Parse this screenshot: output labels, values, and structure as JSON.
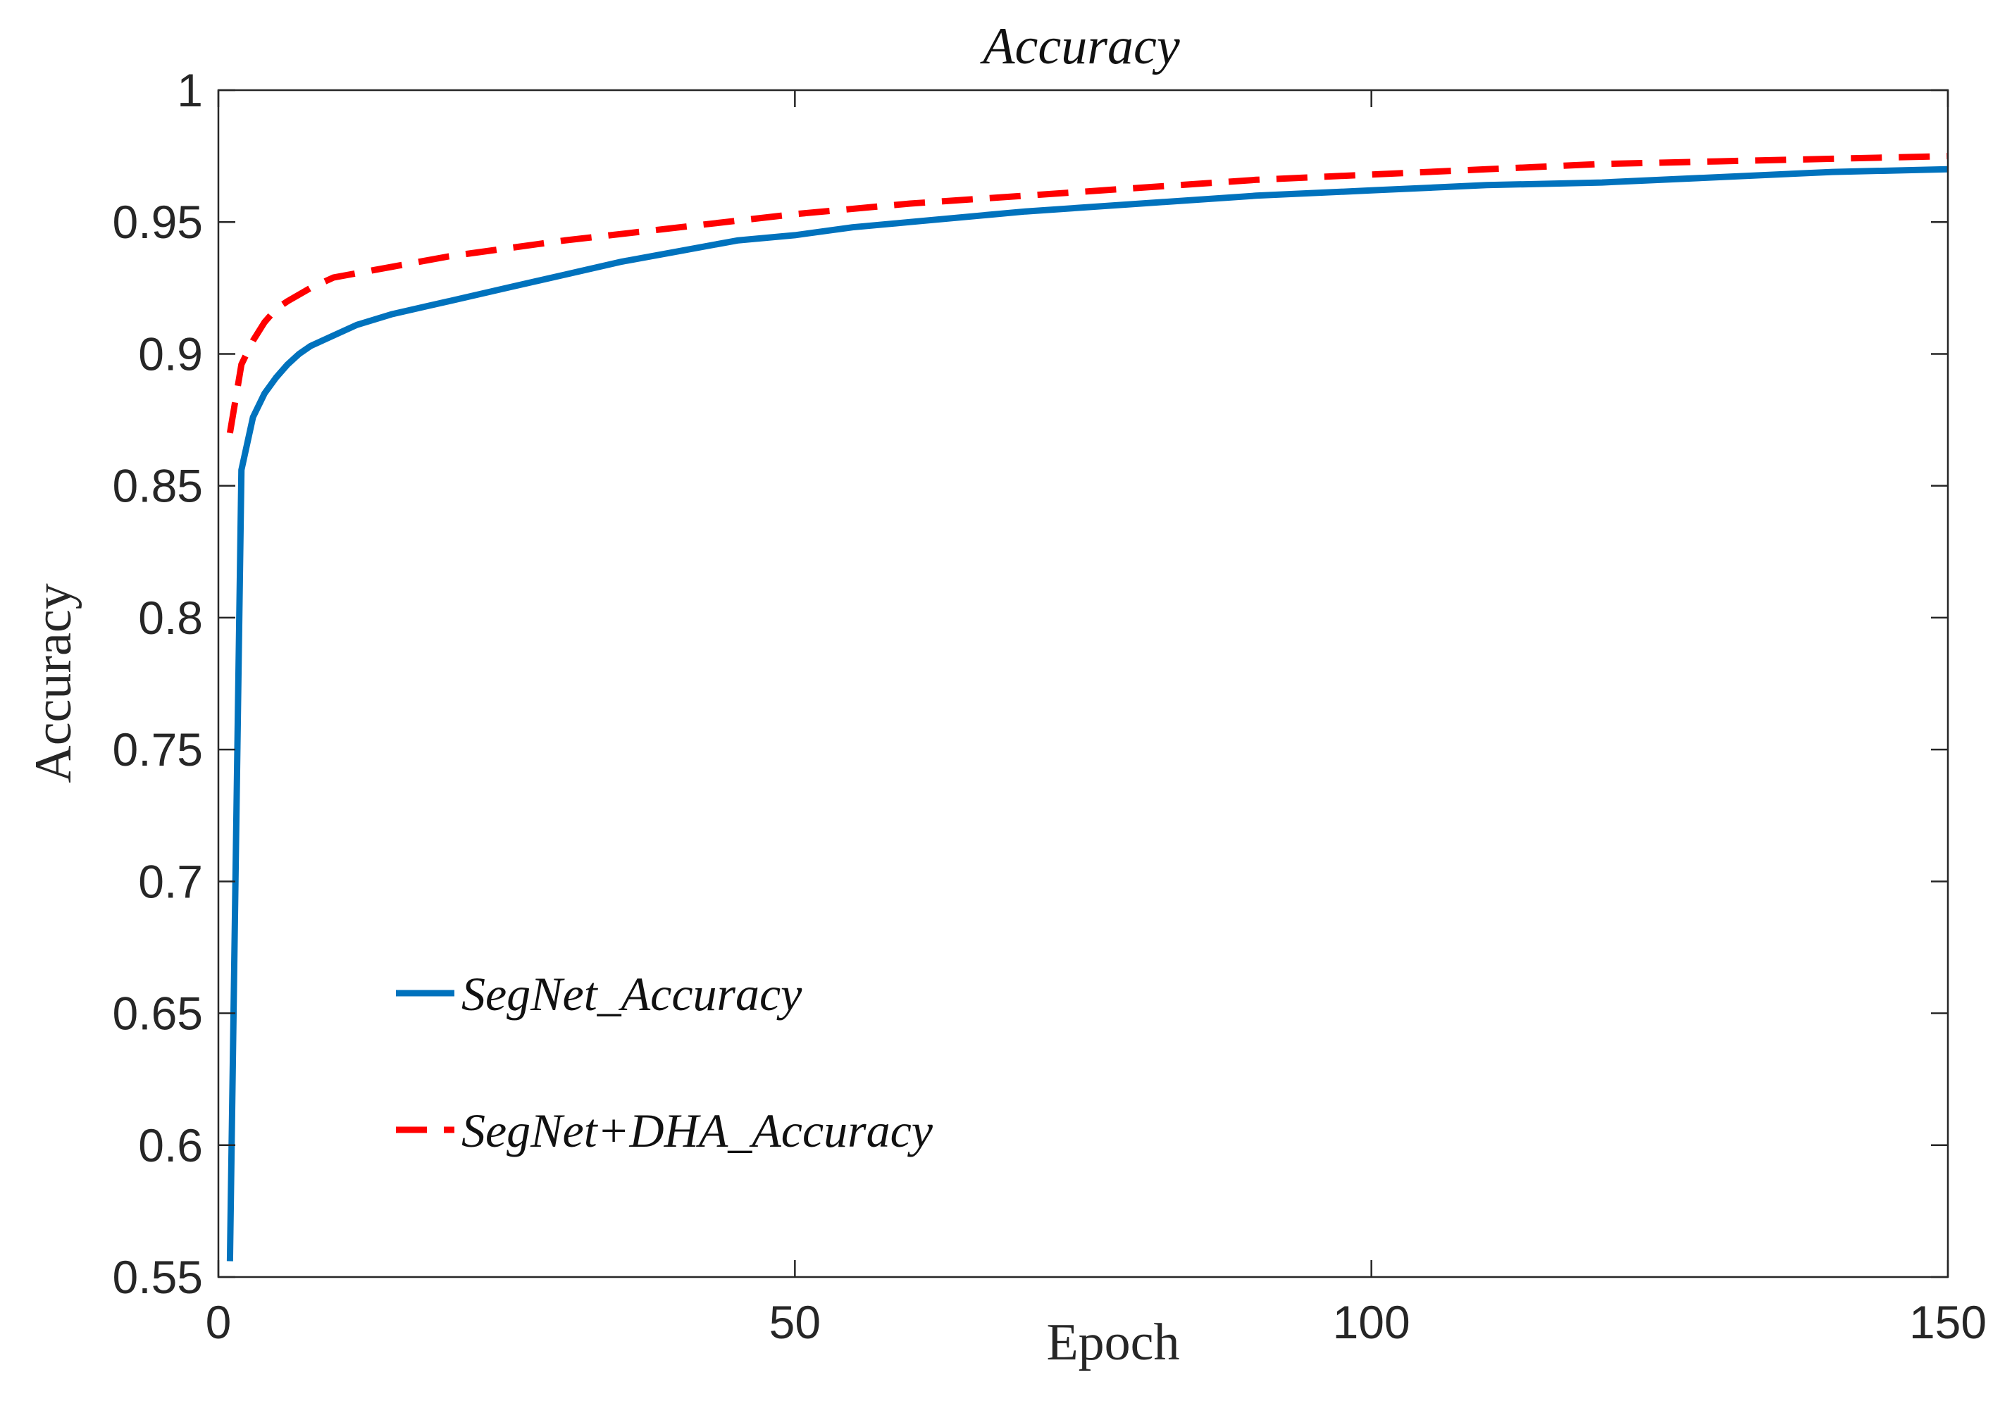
{
  "chart_data": {
    "type": "line",
    "title": "Accuracy",
    "xlabel": "Epoch",
    "ylabel": "Accuracy",
    "xlim": [
      0,
      150
    ],
    "ylim": [
      0.55,
      1
    ],
    "xticks": [
      0,
      50,
      100,
      150
    ],
    "xtick_labels": [
      "0",
      "50",
      "100",
      "150"
    ],
    "yticks": [
      0.55,
      0.6,
      0.65,
      0.7,
      0.75,
      0.8,
      0.85,
      0.9,
      0.95,
      1
    ],
    "ytick_labels": [
      "0.55",
      "0.6",
      "0.65",
      "0.7",
      "0.75",
      "0.8",
      "0.85",
      "0.9",
      "0.95",
      "1"
    ],
    "grid": false,
    "legend_position": "lower-left",
    "series": [
      {
        "name": "SegNet_Accuracy",
        "color": "#0072BD",
        "style": "solid",
        "x": [
          1,
          2,
          3,
          4,
          5,
          6,
          7,
          8,
          10,
          12,
          15,
          18,
          20,
          25,
          30,
          35,
          40,
          45,
          50,
          55,
          60,
          70,
          80,
          90,
          100,
          110,
          120,
          130,
          140,
          150
        ],
        "y": [
          0.556,
          0.856,
          0.876,
          0.885,
          0.891,
          0.896,
          0.9,
          0.903,
          0.907,
          0.911,
          0.915,
          0.918,
          0.92,
          0.925,
          0.93,
          0.935,
          0.939,
          0.943,
          0.945,
          0.948,
          0.95,
          0.954,
          0.957,
          0.96,
          0.962,
          0.964,
          0.965,
          0.967,
          0.969,
          0.97
        ]
      },
      {
        "name": "SegNet+DHA_Accuracy",
        "color": "#FF0000",
        "style": "dashed",
        "x": [
          1,
          2,
          3,
          4,
          5,
          6,
          8,
          10,
          15,
          20,
          30,
          40,
          50,
          60,
          70,
          80,
          90,
          100,
          110,
          120,
          130,
          140,
          150
        ],
        "y": [
          0.87,
          0.896,
          0.905,
          0.912,
          0.917,
          0.92,
          0.925,
          0.929,
          0.933,
          0.937,
          0.943,
          0.948,
          0.953,
          0.957,
          0.96,
          0.963,
          0.966,
          0.968,
          0.97,
          0.972,
          0.973,
          0.974,
          0.975
        ]
      }
    ]
  }
}
